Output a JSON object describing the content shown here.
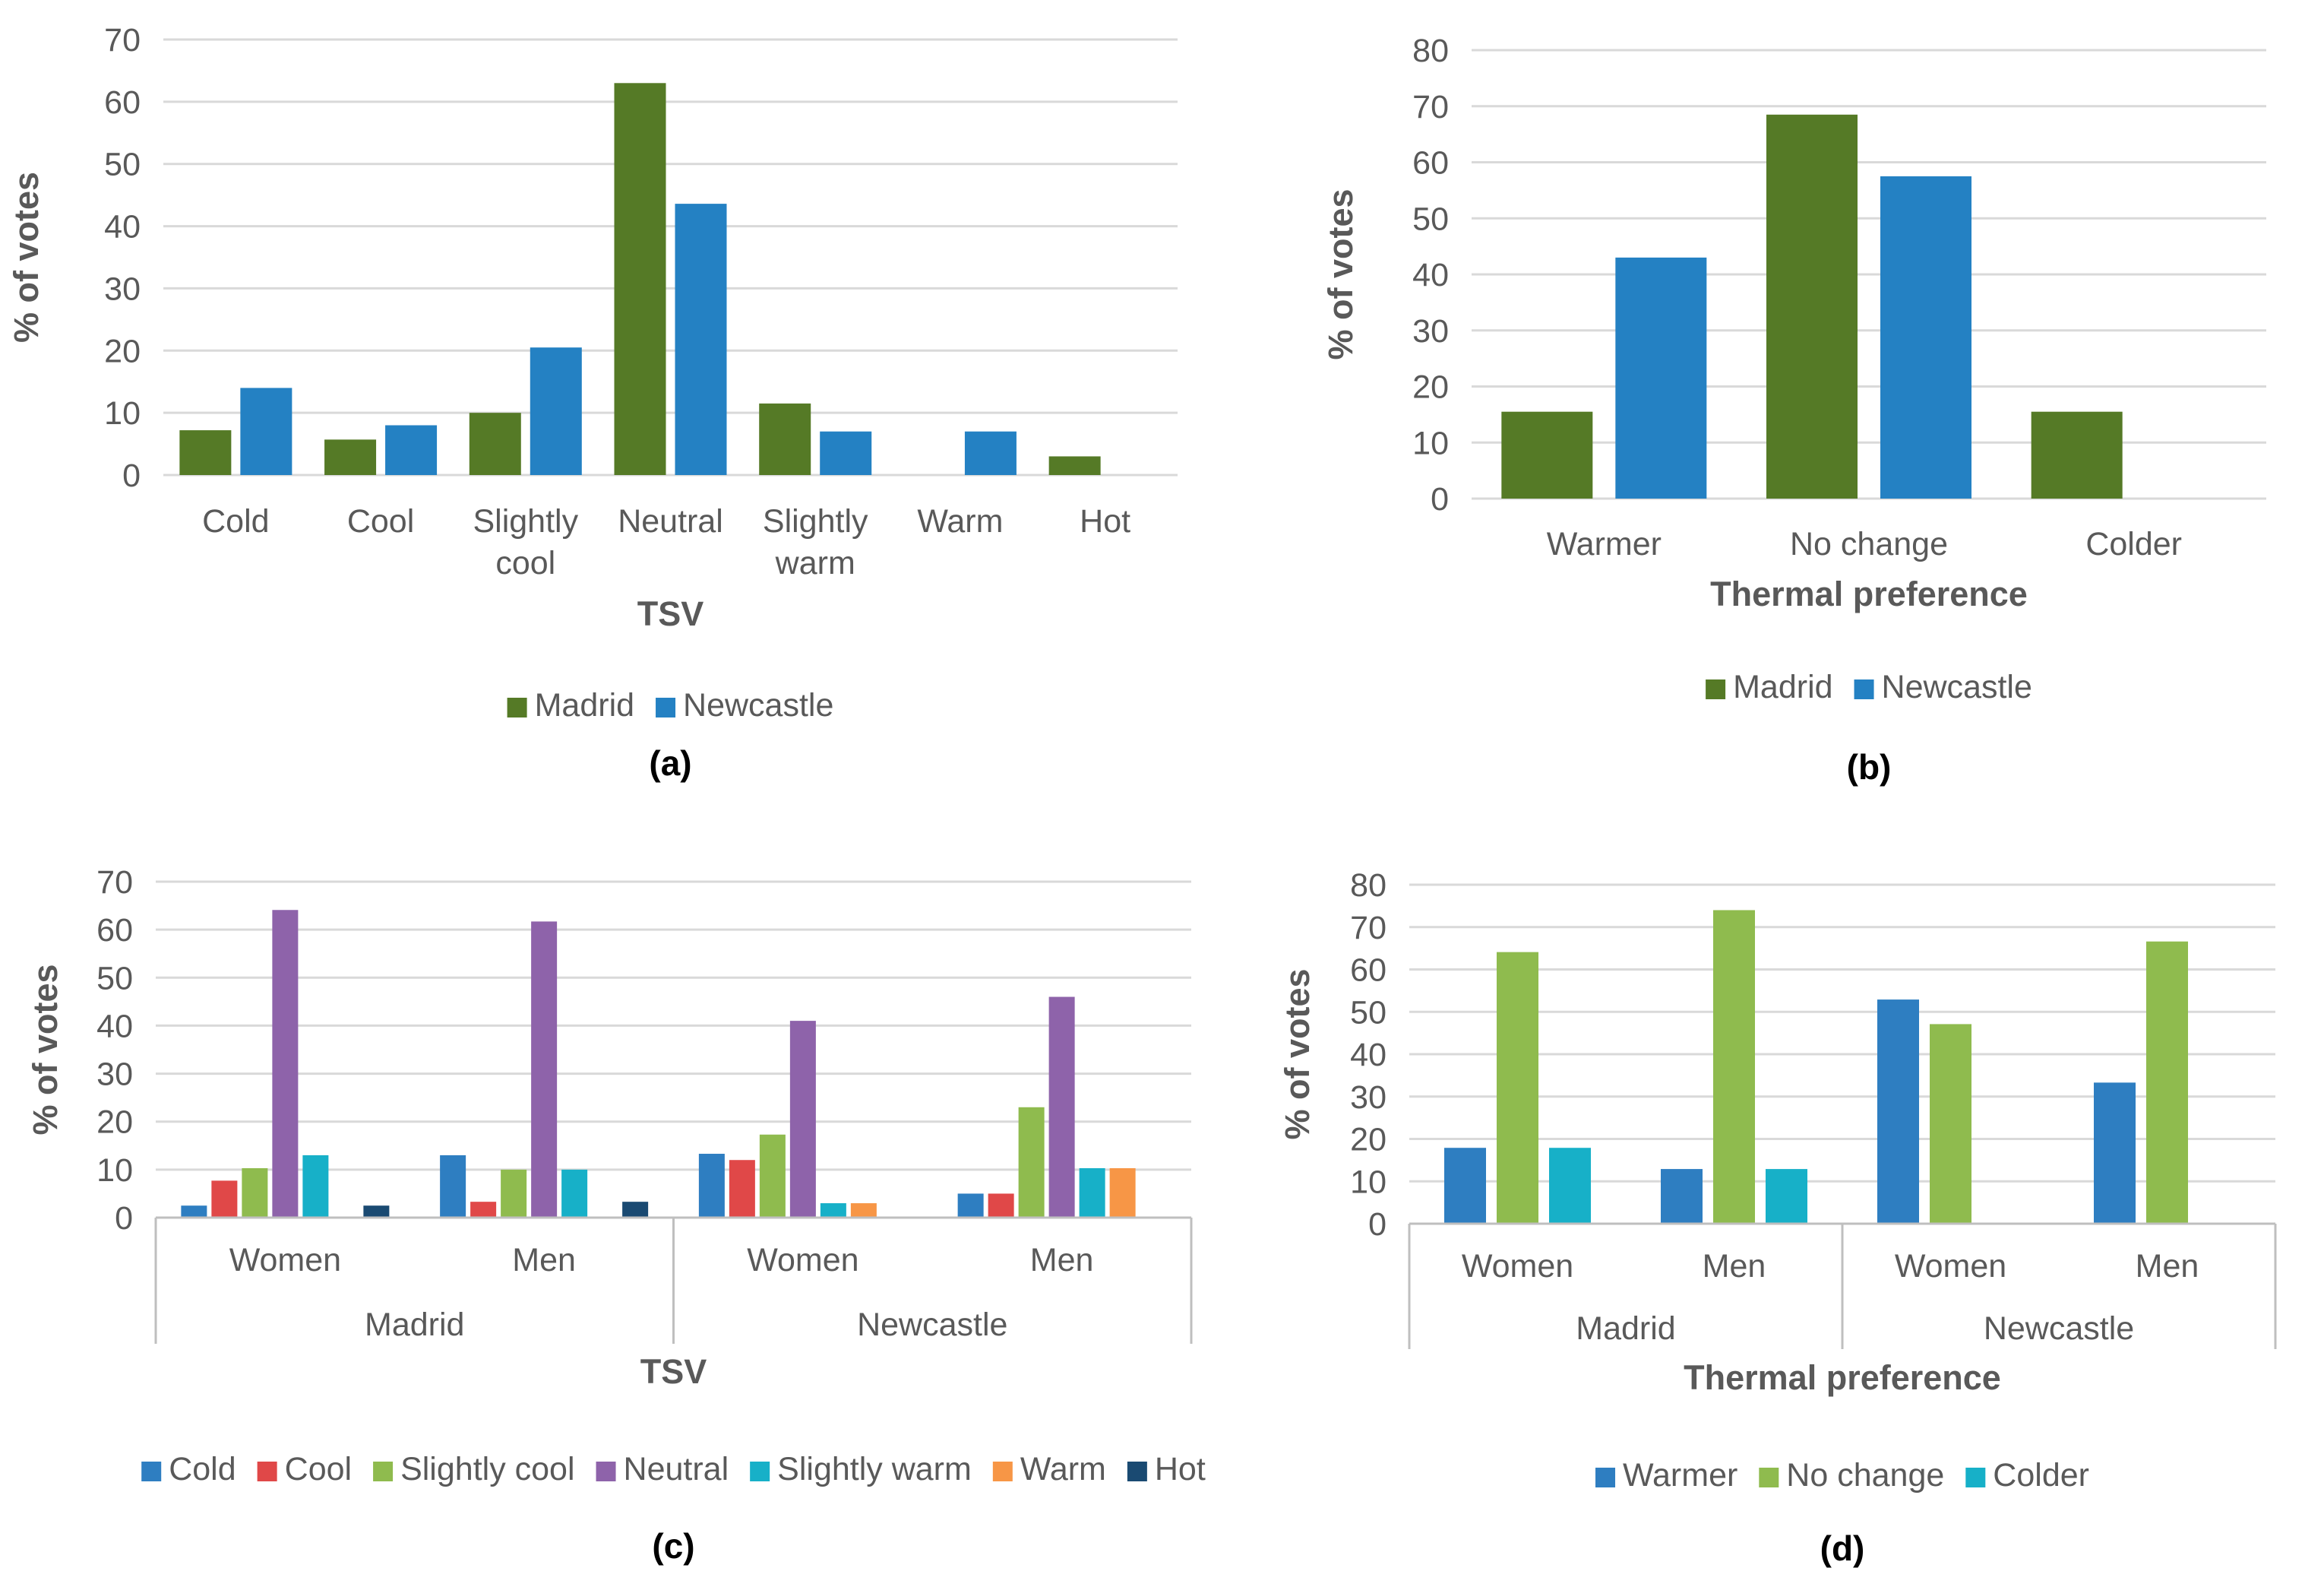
{
  "colors": {
    "madrid": "#557A26",
    "newcastle": "#2481C3",
    "cold": "#2E7EC1",
    "cool": "#E04848",
    "slightly_cool": "#8FBB4E",
    "neutral": "#8E63AA",
    "slightly_warm": "#17B0C8",
    "warm": "#F79646",
    "hot": "#1A4A72",
    "warmer": "#2E7EC1",
    "no_change": "#8FBB4E",
    "colder": "#17B0C8"
  },
  "chart_data": [
    {
      "id": "a",
      "panel_label": "(a)",
      "type": "bar",
      "title": "",
      "xlabel": "TSV",
      "ylabel": "% of votes",
      "ylim": [
        0,
        70
      ],
      "yticks": [
        0,
        10,
        20,
        30,
        40,
        50,
        60,
        70
      ],
      "grid": true,
      "legend_position": "bottom",
      "categories": [
        [
          "Cold"
        ],
        [
          "Cool"
        ],
        [
          "Slightly",
          "cool"
        ],
        [
          "Neutral"
        ],
        [
          "Slightly",
          "warm"
        ],
        [
          "Warm"
        ],
        [
          "Hot"
        ]
      ],
      "series": [
        {
          "name": "Madrid",
          "color_key": "madrid",
          "values": [
            7.2,
            5.7,
            10,
            63,
            11.5,
            0,
            3
          ]
        },
        {
          "name": "Newcastle",
          "color_key": "newcastle",
          "values": [
            14,
            8,
            20.5,
            43.6,
            7,
            7,
            0
          ]
        }
      ]
    },
    {
      "id": "b",
      "panel_label": "(b)",
      "type": "bar",
      "title": "",
      "xlabel": "Thermal preference",
      "ylabel": "% of votes",
      "ylim": [
        0,
        80
      ],
      "yticks": [
        0,
        10,
        20,
        30,
        40,
        50,
        60,
        70,
        80
      ],
      "grid": true,
      "legend_position": "bottom",
      "categories": [
        [
          "Warmer"
        ],
        [
          "No change"
        ],
        [
          "Colder"
        ]
      ],
      "series": [
        {
          "name": "Madrid",
          "color_key": "madrid",
          "values": [
            15.5,
            68.5,
            15.5
          ]
        },
        {
          "name": "Newcastle",
          "color_key": "newcastle",
          "values": [
            43,
            57.5,
            0
          ]
        }
      ]
    },
    {
      "id": "c",
      "panel_label": "(c)",
      "type": "bar",
      "title": "",
      "xlabel": "TSV",
      "ylabel": "% of votes",
      "ylim": [
        0,
        70
      ],
      "yticks": [
        0,
        10,
        20,
        30,
        40,
        50,
        60,
        70
      ],
      "grid": true,
      "legend_position": "bottom",
      "categories": [
        "Women",
        "Men",
        "Women",
        "Men"
      ],
      "groups": [
        {
          "label": "Madrid",
          "span": 2
        },
        {
          "label": "Newcastle",
          "span": 2
        }
      ],
      "series": [
        {
          "name": "Cold",
          "color_key": "cold",
          "values": [
            2.5,
            13,
            13.3,
            5
          ]
        },
        {
          "name": "Cool",
          "color_key": "cool",
          "values": [
            7.7,
            3.3,
            12,
            5
          ]
        },
        {
          "name": "Slightly cool",
          "color_key": "slightly_cool",
          "values": [
            10.3,
            10,
            17.3,
            23
          ]
        },
        {
          "name": "Neutral",
          "color_key": "neutral",
          "values": [
            64.1,
            61.7,
            41,
            46
          ]
        },
        {
          "name": "Slightly warm",
          "color_key": "slightly_warm",
          "values": [
            13,
            10,
            3,
            10.3
          ]
        },
        {
          "name": "Warm",
          "color_key": "warm",
          "values": [
            0,
            0,
            3,
            10.3
          ]
        },
        {
          "name": "Hot",
          "color_key": "hot",
          "values": [
            2.5,
            3.3,
            0,
            0
          ]
        }
      ]
    },
    {
      "id": "d",
      "panel_label": "(d)",
      "type": "bar",
      "title": "",
      "xlabel": "Thermal preference",
      "ylabel": "% of votes",
      "ylim": [
        0,
        80
      ],
      "yticks": [
        0,
        10,
        20,
        30,
        40,
        50,
        60,
        70,
        80
      ],
      "grid": true,
      "legend_position": "bottom",
      "categories": [
        "Women",
        "Men",
        "Women",
        "Men"
      ],
      "groups": [
        {
          "label": "Madrid",
          "span": 2
        },
        {
          "label": "Newcastle",
          "span": 2
        }
      ],
      "series": [
        {
          "name": "Warmer",
          "color_key": "warmer",
          "values": [
            17.9,
            12.9,
            52.9,
            33.3
          ]
        },
        {
          "name": "No change",
          "color_key": "no_change",
          "values": [
            64.1,
            74,
            47.1,
            66.6
          ]
        },
        {
          "name": "Colder",
          "color_key": "colder",
          "values": [
            17.9,
            12.9,
            0,
            0
          ]
        }
      ]
    }
  ]
}
